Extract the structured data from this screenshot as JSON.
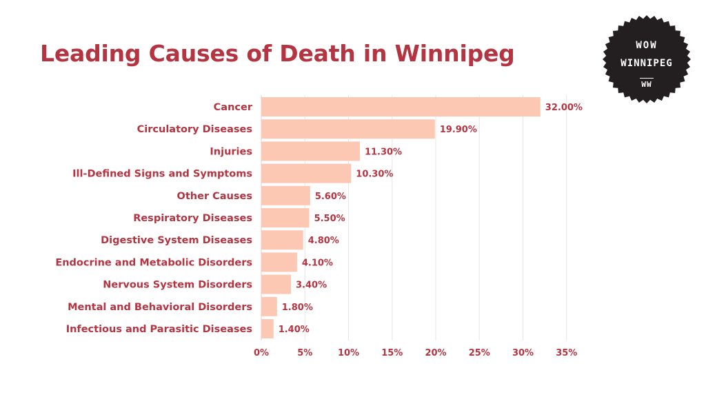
{
  "brand": {
    "line1": "WOW",
    "line2": "WINNIPEG",
    "line3": "WW",
    "badge_color": "#231f20"
  },
  "colors": {
    "bar": "#fcc8b4",
    "text": "#b53441",
    "grid": "#e6e6e6"
  },
  "chart_data": {
    "type": "bar",
    "orientation": "horizontal",
    "title": "Leading Causes of Death in Winnipeg",
    "categories": [
      "Cancer",
      "Circulatory Diseases",
      "Injuries",
      "Ill-Defined Signs and Symptoms",
      "Other Causes",
      "Respiratory Diseases",
      "Digestive System Diseases",
      "Endocrine and Metabolic Disorders",
      "Nervous System Disorders",
      "Mental and Behavioral Disorders",
      "Infectious and Parasitic Diseases"
    ],
    "values": [
      32.0,
      19.9,
      11.3,
      10.3,
      5.6,
      5.5,
      4.8,
      4.1,
      3.4,
      1.8,
      1.4
    ],
    "value_labels": [
      "32.00%",
      "19.90%",
      "11.30%",
      "10.30%",
      "5.60%",
      "5.50%",
      "4.80%",
      "4.10%",
      "3.40%",
      "1.80%",
      "1.40%"
    ],
    "xticks": [
      0,
      5,
      10,
      15,
      20,
      25,
      30,
      35
    ],
    "xtick_labels": [
      "0%",
      "5%",
      "10%",
      "15%",
      "20%",
      "25%",
      "30%",
      "35%"
    ],
    "xlim": [
      0,
      35
    ],
    "grid": true
  }
}
